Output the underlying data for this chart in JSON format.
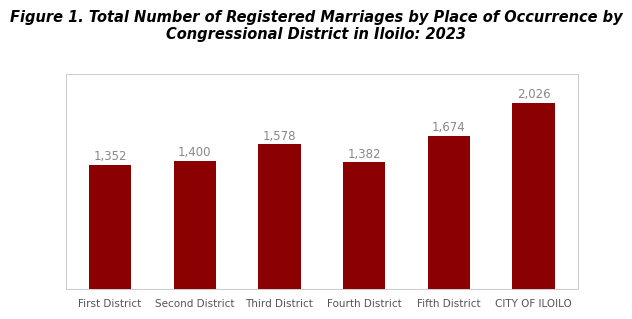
{
  "title": "Figure 1. Total Number of Registered Marriages by Place of Occurrence by\nCongressional District in Iloilo: 2023",
  "categories": [
    "First District",
    "Second District",
    "Third District",
    "Fourth District",
    "Fifth District",
    "CITY OF ILOILO"
  ],
  "values": [
    1352,
    1400,
    1578,
    1382,
    1674,
    2026
  ],
  "labels": [
    "1,352",
    "1,400",
    "1,578",
    "1,382",
    "1,674",
    "2,026"
  ],
  "bar_color": "#8B0000",
  "label_color": "#888888",
  "background_color": "#ffffff",
  "title_fontsize": 10.5,
  "bar_label_fontsize": 8.5,
  "tick_label_fontsize": 7.5,
  "ylim": [
    0,
    2350
  ],
  "bar_width": 0.5
}
